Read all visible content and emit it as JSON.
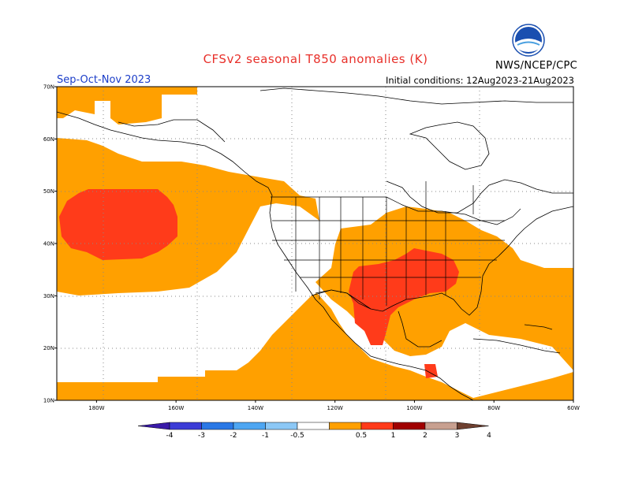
{
  "header": {
    "title": "CFSv2 seasonal T850 anomalies (K)",
    "period": "Sep-Oct-Nov 2023",
    "initial_conditions": "Initial conditions: 12Aug2023-21Aug2023",
    "agency": "NWS/NCEP/CPC",
    "logo_text": "NOAA"
  },
  "map": {
    "lon_range": [
      -190,
      -60
    ],
    "lat_range": [
      10,
      70
    ],
    "lat_ticks": [
      {
        "value": 70,
        "label": "70N"
      },
      {
        "value": 60,
        "label": "60N"
      },
      {
        "value": 50,
        "label": "50N"
      },
      {
        "value": 40,
        "label": "40N"
      },
      {
        "value": 30,
        "label": "30N"
      },
      {
        "value": 20,
        "label": "20N"
      },
      {
        "value": 10,
        "label": "10N"
      }
    ],
    "lon_ticks": [
      {
        "value": -180,
        "label": "180W"
      },
      {
        "value": -160,
        "label": "160W"
      },
      {
        "value": -140,
        "label": "140W"
      },
      {
        "value": -120,
        "label": "120W"
      },
      {
        "value": -100,
        "label": "100W"
      },
      {
        "value": -80,
        "label": "80W"
      },
      {
        "value": -60,
        "label": "60W"
      }
    ],
    "colors": {
      "anom_0_5_1": "#ffa000",
      "anom_1_2": "#ff3b1a",
      "land_line": "#000000",
      "grid_dot": "#888888"
    }
  },
  "colorbar": {
    "labels": [
      "-4",
      "-3",
      "-2",
      "-1",
      "-0.5",
      "0.5",
      "1",
      "2",
      "3",
      "4"
    ],
    "colors": [
      "#3a1aa8",
      "#3c3cd6",
      "#2a78e6",
      "#4ea6f2",
      "#8cc8f6",
      "#ffffff",
      "#ffa000",
      "#ff3b1a",
      "#a00000",
      "#c8a090",
      "#6e4030"
    ]
  }
}
